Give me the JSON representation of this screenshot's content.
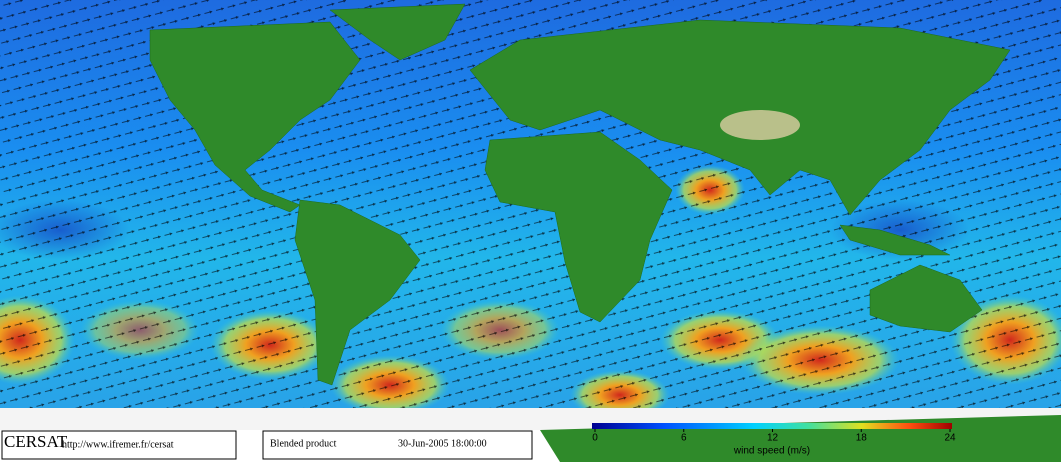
{
  "header": {
    "logo": "CERSAT",
    "url": "http://www.ifremer.fr/cersat",
    "product": "Blended product",
    "datetime": "30-Jun-2005 18:00:00"
  },
  "colorbar": {
    "label": "wind speed (m/s)",
    "lim": [
      0,
      24
    ],
    "ticks": [
      0,
      6,
      12,
      18,
      24
    ]
  }
}
